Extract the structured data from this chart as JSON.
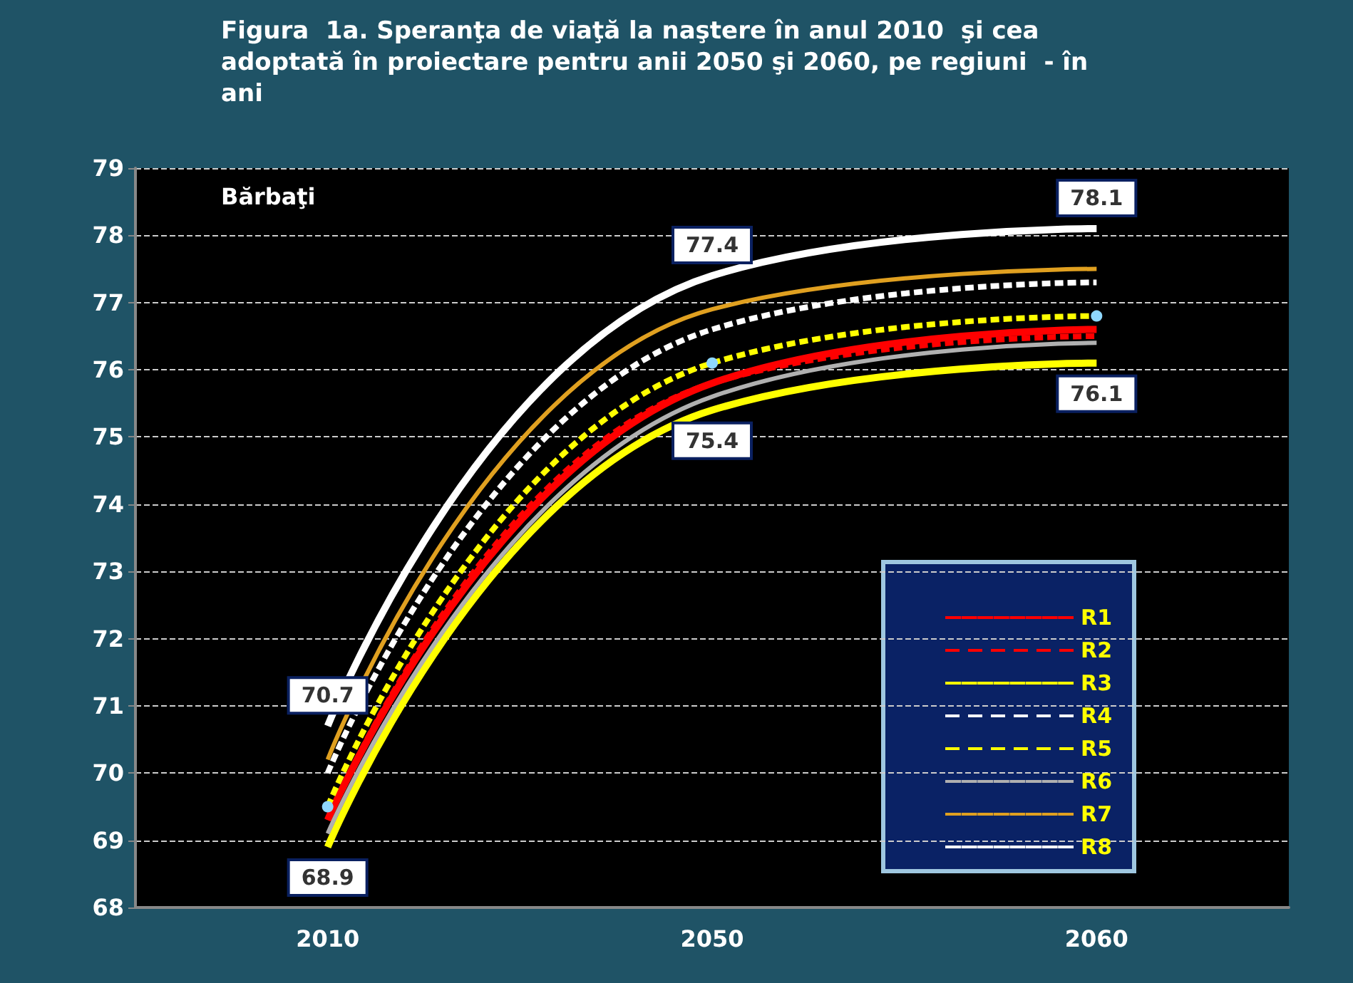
{
  "chart_data": {
    "type": "line",
    "title": "Figura  1a. Speranţa de viaţă la naştere în anul 2010  şi cea adoptată în proiectare pentru anii 2050 şi 2060, pe regiuni  - în ani",
    "annotations": [
      "Bărbaţi"
    ],
    "categories": [
      "2010",
      "2050",
      "2060"
    ],
    "ylim": [
      68,
      79
    ],
    "yticks": [
      68,
      69,
      70,
      71,
      72,
      73,
      74,
      75,
      76,
      77,
      78,
      79
    ],
    "grid": "y",
    "legend": "bottom right",
    "marker": "none",
    "line_style": "solid",
    "series": [
      {
        "name": "R1",
        "color": "#ff0000",
        "values": [
          69.3,
          75.8,
          76.6
        ]
      },
      {
        "name": "R2",
        "color": "#ff0000",
        "values": [
          69.3,
          75.8,
          76.5
        ],
        "line_style": "dashed"
      },
      {
        "name": "R3",
        "color": "#ffff00",
        "values": [
          68.9,
          75.4,
          76.1
        ],
        "value_labels": [
          "68.9",
          "75.4",
          "76.1"
        ]
      },
      {
        "name": "R4",
        "color": "#ffffff",
        "values": [
          70.0,
          76.6,
          77.3
        ],
        "line_style": "dashed"
      },
      {
        "name": "R5",
        "color": "#ffff00",
        "values": [
          69.5,
          76.1,
          76.8
        ],
        "line_style": "dashed",
        "marker": "circle"
      },
      {
        "name": "R6",
        "color": "#b0b0b0",
        "values": [
          69.1,
          75.6,
          76.4
        ]
      },
      {
        "name": "R7",
        "color": "#e0a020",
        "values": [
          70.2,
          76.9,
          77.5
        ]
      },
      {
        "name": "R8",
        "color": "#ffffff",
        "values": [
          70.7,
          77.4,
          78.1
        ],
        "value_labels": [
          "70.7",
          "77.4",
          "78.1"
        ]
      }
    ]
  }
}
